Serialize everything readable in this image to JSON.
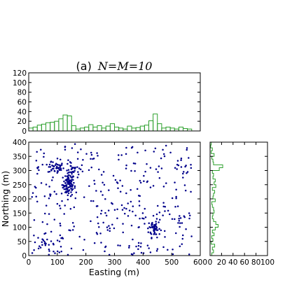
{
  "chart_data": [
    {
      "panel": "top-histogram",
      "type": "bar",
      "title_prefix": "(a)",
      "title_math": "N=M=10",
      "bin_width": 15,
      "bin_starts": [
        0,
        15,
        30,
        45,
        60,
        75,
        90,
        105,
        120,
        135,
        150,
        165,
        180,
        195,
        210,
        225,
        240,
        255,
        270,
        285,
        300,
        315,
        330,
        345,
        360,
        375,
        390,
        405,
        420,
        435,
        450,
        465,
        480,
        495,
        510,
        525,
        540,
        555
      ],
      "values": [
        6,
        8,
        12,
        14,
        17,
        18,
        20,
        25,
        33,
        31,
        11,
        4,
        6,
        8,
        13,
        8,
        11,
        6,
        10,
        15,
        8,
        6,
        4,
        10,
        6,
        7,
        10,
        12,
        21,
        35,
        15,
        6,
        8,
        6,
        4,
        8,
        5,
        4
      ],
      "ylim": [
        0,
        120
      ],
      "y_ticks": [
        0,
        20,
        40,
        60,
        80,
        100,
        120
      ]
    },
    {
      "panel": "scatter",
      "type": "scatter",
      "xlabel": "Easting (m)",
      "ylabel": "Northing (m)",
      "xlim": [
        0,
        600
      ],
      "ylim": [
        0,
        400
      ],
      "x_ticks": [
        0,
        100,
        200,
        300,
        400,
        500,
        600
      ],
      "y_ticks": [
        0,
        50,
        100,
        150,
        200,
        250,
        300,
        350,
        400
      ],
      "clusters": [
        {
          "x": 140,
          "y": 250,
          "sx": 10,
          "sy": 20,
          "n": 90
        },
        {
          "x": 95,
          "y": 310,
          "sx": 14,
          "sy": 10,
          "n": 40
        },
        {
          "x": 150,
          "y": 305,
          "sx": 10,
          "sy": 10,
          "n": 20
        },
        {
          "x": 440,
          "y": 95,
          "sx": 10,
          "sy": 15,
          "n": 45
        },
        {
          "x": 60,
          "y": 45,
          "sx": 15,
          "sy": 15,
          "n": 15
        }
      ],
      "uniform_points": 350
    },
    {
      "panel": "right-histogram",
      "type": "bar",
      "orientation": "horizontal",
      "bin_width": 10,
      "bin_starts": [
        0,
        10,
        20,
        30,
        40,
        50,
        60,
        70,
        80,
        90,
        100,
        110,
        120,
        130,
        140,
        150,
        160,
        170,
        180,
        190,
        200,
        210,
        220,
        230,
        240,
        250,
        260,
        270,
        280,
        290,
        300,
        310,
        320,
        330,
        340,
        350,
        360,
        370,
        380,
        390
      ],
      "values": [
        3,
        6,
        4,
        8,
        2,
        5,
        3,
        7,
        4,
        9,
        14,
        10,
        6,
        4,
        5,
        7,
        6,
        4,
        3,
        9,
        5,
        6,
        8,
        4,
        10,
        7,
        9,
        5,
        6,
        4,
        16,
        22,
        6,
        5,
        3,
        7,
        2,
        4,
        1,
        2
      ],
      "xlim": [
        0,
        100
      ],
      "x_ticks": [
        0,
        20,
        40,
        60,
        80,
        100
      ]
    }
  ]
}
